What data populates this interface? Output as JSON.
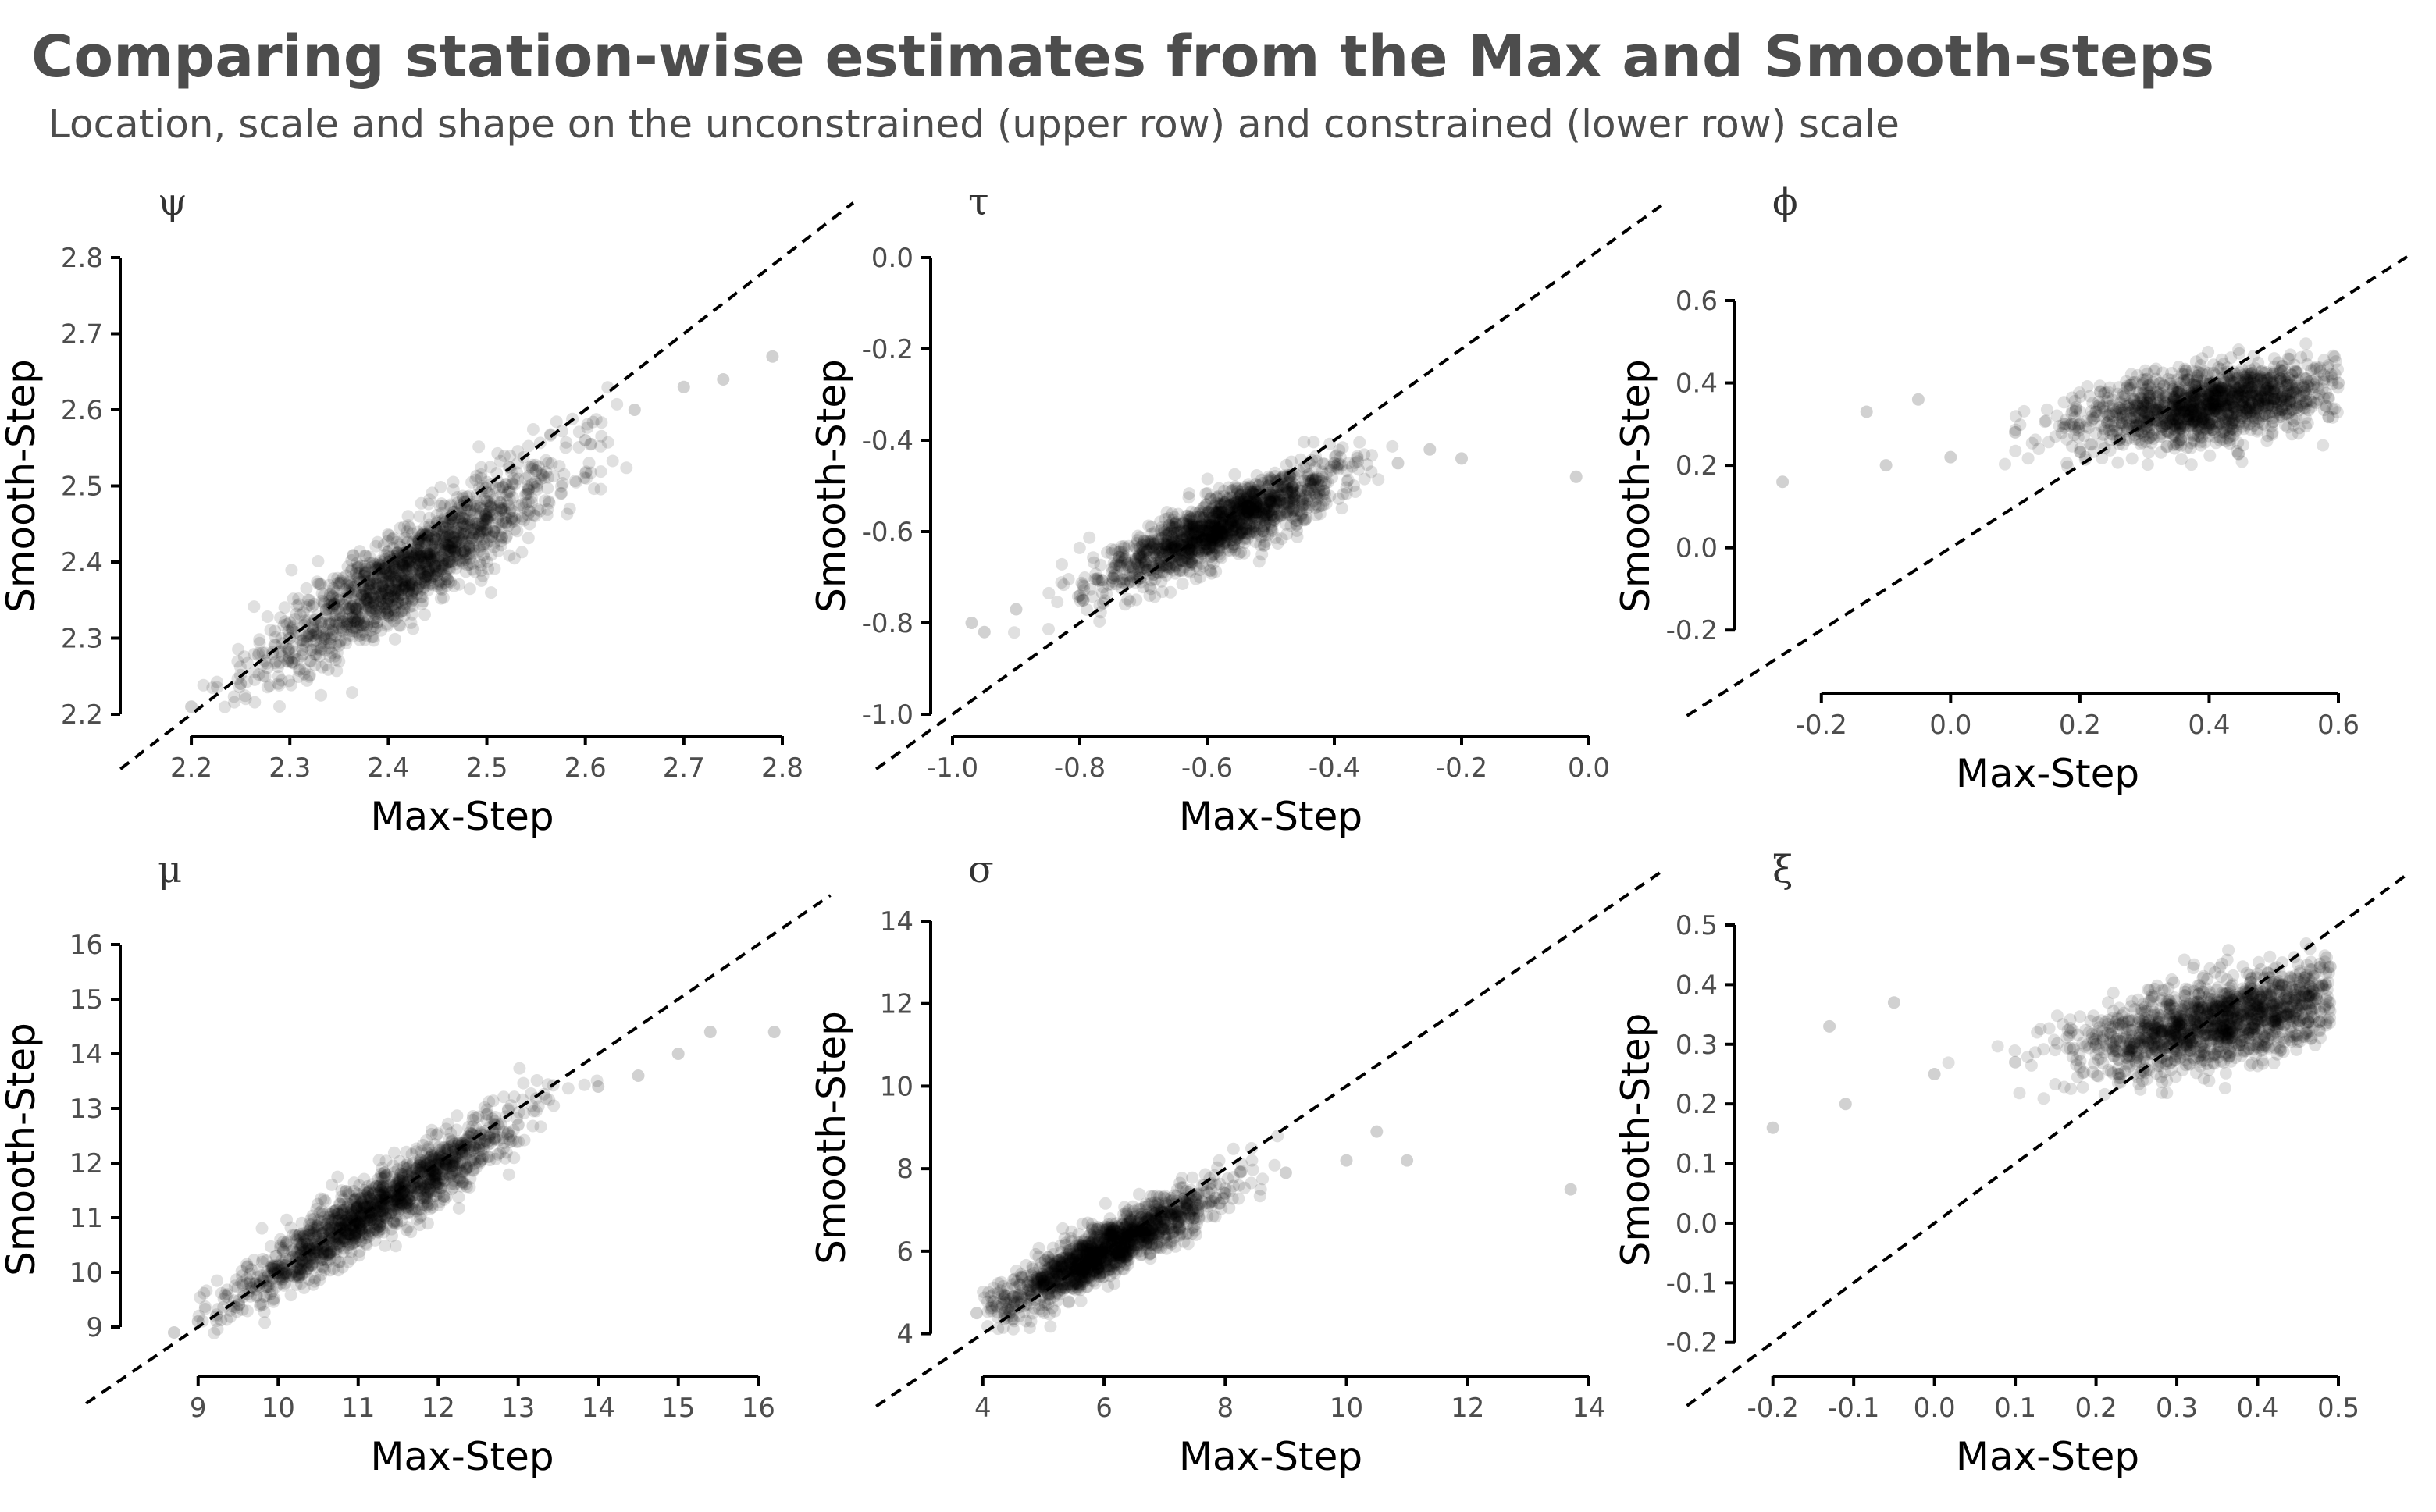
{
  "figure": {
    "title": "Comparing station-wise estimates from the Max and Smooth-steps",
    "subtitle": "Location, scale and shape on the unconstrained (upper row) and constrained (lower row) scale"
  },
  "colors": {
    "points": "#000000",
    "point_alpha": 0.12,
    "text": "#4d4d4d",
    "axis": "#000000",
    "reference_line": "#000000"
  },
  "chart_data": [
    {
      "type": "scatter",
      "title": "ψ",
      "xlabel": "Max-Step",
      "ylabel": "Smooth-Step",
      "xlim": [
        2.15,
        2.8
      ],
      "ylim": [
        2.2,
        2.8
      ],
      "xticks": [
        "2.2",
        "2.3",
        "2.4",
        "2.5",
        "2.6",
        "2.7",
        "2.8"
      ],
      "yticks": [
        "2.2",
        "2.3",
        "2.4",
        "2.5",
        "2.6",
        "2.7",
        "2.8"
      ],
      "reference_line": "y = x",
      "points": [
        [
          2.17,
          2.18
        ],
        [
          2.2,
          2.21
        ],
        [
          2.25,
          2.24
        ],
        [
          2.3,
          2.3
        ],
        [
          2.35,
          2.35
        ],
        [
          2.4,
          2.4
        ],
        [
          2.45,
          2.44
        ],
        [
          2.5,
          2.48
        ],
        [
          2.55,
          2.52
        ],
        [
          2.6,
          2.56
        ],
        [
          2.65,
          2.6
        ],
        [
          2.7,
          2.63
        ],
        [
          2.74,
          2.64
        ],
        [
          2.79,
          2.67
        ]
      ],
      "cloud": {
        "n": 1500,
        "x_range": [
          2.2,
          2.75
        ],
        "slope": 0.83,
        "intercept": 0.38,
        "noise_sd": 0.03,
        "center": 2.42,
        "spread": 0.1
      }
    },
    {
      "type": "scatter",
      "title": "τ",
      "xlabel": "Max-Step",
      "ylabel": "Smooth-Step",
      "xlim": [
        -1.0,
        0.0
      ],
      "ylim": [
        -1.0,
        0.0
      ],
      "xticks": [
        "-1.0",
        "-0.8",
        "-0.6",
        "-0.4",
        "-0.2",
        "0.0"
      ],
      "yticks": [
        "-1.0",
        "-0.8",
        "-0.6",
        "-0.4",
        "-0.2",
        "0.0"
      ],
      "reference_line": "y = x",
      "points": [
        [
          -0.97,
          -0.8
        ],
        [
          -0.95,
          -0.82
        ],
        [
          -0.9,
          -0.77
        ],
        [
          -0.8,
          -0.74
        ],
        [
          -0.7,
          -0.68
        ],
        [
          -0.6,
          -0.6
        ],
        [
          -0.5,
          -0.52
        ],
        [
          -0.4,
          -0.45
        ],
        [
          -0.3,
          -0.45
        ],
        [
          -0.25,
          -0.42
        ],
        [
          -0.2,
          -0.44
        ],
        [
          -0.02,
          -0.48
        ]
      ],
      "cloud": {
        "n": 1500,
        "x_range": [
          -0.95,
          -0.3
        ],
        "slope": 0.6,
        "intercept": -0.24,
        "noise_sd": 0.035,
        "center": -0.58,
        "spread": 0.12
      }
    },
    {
      "type": "scatter",
      "title": "ϕ",
      "xlabel": "Max-Step",
      "ylabel": "Smooth-Step",
      "xlim": [
        -0.3,
        0.6
      ],
      "ylim": [
        -0.3,
        0.6
      ],
      "xticks": [
        "-0.2",
        "0.0",
        "0.2",
        "0.4",
        "0.6"
      ],
      "yticks": [
        "-0.2",
        "0.0",
        "0.2",
        "0.4",
        "0.6"
      ],
      "reference_line": "y = x",
      "points": [
        [
          -0.26,
          0.16
        ],
        [
          -0.13,
          0.33
        ],
        [
          -0.1,
          0.2
        ],
        [
          -0.05,
          0.36
        ],
        [
          0.0,
          0.22
        ],
        [
          0.1,
          0.28
        ],
        [
          0.2,
          0.3
        ],
        [
          0.3,
          0.33
        ],
        [
          0.4,
          0.35
        ],
        [
          0.5,
          0.38
        ],
        [
          0.6,
          0.4
        ],
        [
          0.62,
          0.38
        ]
      ],
      "cloud": {
        "n": 1500,
        "x_range": [
          -0.05,
          0.63
        ],
        "slope": 0.22,
        "intercept": 0.26,
        "noise_sd": 0.045,
        "center": 0.4,
        "spread": 0.14
      }
    },
    {
      "type": "scatter",
      "title": "μ",
      "xlabel": "Max-Step",
      "ylabel": "Smooth-Step",
      "xlim": [
        8.3,
        16.3
      ],
      "ylim": [
        8.5,
        16.0
      ],
      "xticks": [
        "9",
        "10",
        "11",
        "12",
        "13",
        "14",
        "15",
        "16"
      ],
      "yticks": [
        "9",
        "10",
        "11",
        "12",
        "13",
        "14",
        "15",
        "16"
      ],
      "reference_line": "y = x",
      "points": [
        [
          8.7,
          8.9
        ],
        [
          9.0,
          9.1
        ],
        [
          10.0,
          10.0
        ],
        [
          11.0,
          10.9
        ],
        [
          12.0,
          11.9
        ],
        [
          13.0,
          12.7
        ],
        [
          14.0,
          13.4
        ],
        [
          14.5,
          13.6
        ],
        [
          15.0,
          14.0
        ],
        [
          15.4,
          14.4
        ],
        [
          16.2,
          14.4
        ]
      ],
      "cloud": {
        "n": 1500,
        "x_range": [
          9.0,
          15.5
        ],
        "slope": 0.88,
        "intercept": 1.3,
        "noise_sd": 0.3,
        "center": 11.2,
        "spread": 1.2
      }
    },
    {
      "type": "scatter",
      "title": "σ",
      "xlabel": "Max-Step",
      "ylabel": "Smooth-Step",
      "xlim": [
        3.5,
        14.0
      ],
      "ylim": [
        3.5,
        14.0
      ],
      "xticks": [
        "4",
        "6",
        "8",
        "10",
        "12",
        "14"
      ],
      "yticks": [
        "4",
        "6",
        "8",
        "10",
        "12",
        "14"
      ],
      "reference_line": "y = x",
      "points": [
        [
          3.9,
          4.5
        ],
        [
          4.5,
          4.9
        ],
        [
          5.0,
          5.2
        ],
        [
          6.0,
          6.0
        ],
        [
          7.0,
          6.7
        ],
        [
          8.0,
          7.4
        ],
        [
          9.0,
          7.9
        ],
        [
          10.0,
          8.2
        ],
        [
          10.5,
          8.9
        ],
        [
          11.0,
          8.2
        ],
        [
          13.7,
          7.5
        ]
      ],
      "cloud": {
        "n": 1500,
        "x_range": [
          4.0,
          9.5
        ],
        "slope": 0.75,
        "intercept": 1.5,
        "noise_sd": 0.32,
        "center": 6.0,
        "spread": 1.2
      }
    },
    {
      "type": "scatter",
      "title": "ξ",
      "xlabel": "Max-Step",
      "ylabel": "Smooth-Step",
      "xlim": [
        -0.22,
        0.5
      ],
      "ylim": [
        -0.22,
        0.5
      ],
      "xticks": [
        "-0.2",
        "-0.1",
        "0.0",
        "0.1",
        "0.2",
        "0.3",
        "0.4",
        "0.5"
      ],
      "yticks": [
        "-0.2",
        "-0.1",
        "0.0",
        "0.1",
        "0.2",
        "0.3",
        "0.4",
        "0.5"
      ],
      "reference_line": "y = x",
      "points": [
        [
          -0.2,
          0.16
        ],
        [
          -0.13,
          0.33
        ],
        [
          -0.11,
          0.2
        ],
        [
          -0.05,
          0.37
        ],
        [
          0.0,
          0.25
        ],
        [
          0.1,
          0.27
        ],
        [
          0.2,
          0.3
        ],
        [
          0.3,
          0.33
        ],
        [
          0.4,
          0.36
        ],
        [
          0.48,
          0.4
        ],
        [
          0.49,
          0.43
        ]
      ],
      "cloud": {
        "n": 1500,
        "x_range": [
          0.0,
          0.49
        ],
        "slope": 0.28,
        "intercept": 0.24,
        "noise_sd": 0.035,
        "center": 0.36,
        "spread": 0.12
      }
    }
  ]
}
